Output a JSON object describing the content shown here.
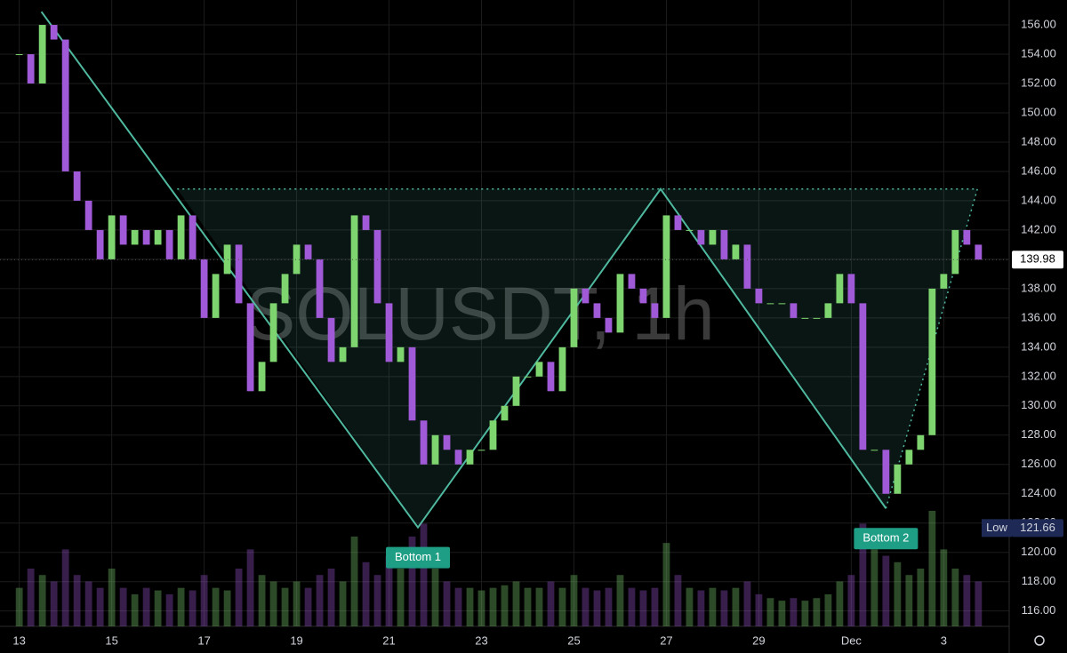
{
  "chart_data": {
    "type": "candlestick",
    "title": "SOLUSDT, 1h",
    "x": [
      0,
      6,
      12,
      18,
      24,
      30,
      36,
      42,
      48,
      54,
      60,
      66,
      72,
      78,
      84,
      90,
      96,
      102,
      108,
      114,
      120,
      126,
      132,
      138,
      144,
      150,
      156,
      162,
      168,
      174,
      180,
      186,
      192,
      198,
      204,
      210,
      216,
      222,
      228,
      234,
      240,
      246,
      252,
      258,
      264,
      270,
      276,
      282,
      288,
      294,
      300,
      306,
      312,
      318,
      324,
      330,
      336,
      342,
      348,
      354,
      360,
      366,
      372,
      378,
      384,
      390,
      396,
      402,
      408,
      414,
      420,
      426,
      432,
      438,
      444,
      450,
      456,
      462,
      468,
      474,
      480,
      486,
      492,
      498
    ],
    "close": [
      154,
      152,
      156,
      155,
      146,
      144,
      142,
      140,
      143,
      141,
      142,
      141,
      142,
      140,
      143,
      140,
      136,
      139,
      141,
      137,
      131,
      133,
      137,
      139,
      141,
      140,
      136,
      133,
      134,
      143,
      142,
      137,
      133,
      134,
      129,
      126,
      128,
      127,
      126,
      127,
      127,
      129,
      130,
      132,
      132,
      133,
      131,
      134,
      138,
      137,
      136,
      135,
      139,
      138,
      137,
      136,
      143,
      142,
      142,
      141,
      142,
      140,
      141,
      138,
      137,
      137,
      137,
      136,
      136,
      136,
      137,
      139,
      137,
      127,
      127,
      124,
      126,
      127,
      128,
      138,
      139,
      142,
      141,
      139.98
    ],
    "volume": [
      30,
      45,
      40,
      35,
      60,
      40,
      35,
      30,
      45,
      30,
      25,
      30,
      28,
      25,
      30,
      28,
      40,
      30,
      28,
      45,
      60,
      40,
      35,
      30,
      35,
      30,
      40,
      45,
      35,
      70,
      50,
      40,
      55,
      45,
      70,
      80,
      45,
      35,
      30,
      30,
      28,
      30,
      32,
      35,
      30,
      30,
      35,
      30,
      40,
      30,
      28,
      30,
      40,
      30,
      28,
      30,
      65,
      40,
      30,
      28,
      30,
      28,
      30,
      35,
      25,
      22,
      20,
      22,
      20,
      22,
      25,
      35,
      40,
      80,
      60,
      55,
      50,
      40,
      45,
      90,
      60,
      45,
      40,
      35
    ],
    "up_color": "#7ed56f",
    "down_color": "#a05ad8",
    "xlim": [
      -10,
      514
    ],
    "ylim": [
      114.95,
      157.7
    ],
    "xticks": [
      {
        "value": 0,
        "label": "13"
      },
      {
        "value": 48,
        "label": "15"
      },
      {
        "value": 96,
        "label": "17"
      },
      {
        "value": 144,
        "label": "19"
      },
      {
        "value": 192,
        "label": "21"
      },
      {
        "value": 240,
        "label": "23"
      },
      {
        "value": 288,
        "label": "25"
      },
      {
        "value": 336,
        "label": "27"
      },
      {
        "value": 384,
        "label": "29"
      },
      {
        "value": 432,
        "label": "Dec"
      },
      {
        "value": 480,
        "label": "3"
      }
    ],
    "yticks": [
      {
        "value": 116,
        "label": "116.00"
      },
      {
        "value": 118,
        "label": "118.00"
      },
      {
        "value": 120,
        "label": "120.00"
      },
      {
        "value": 122,
        "label": "122.00"
      },
      {
        "value": 124,
        "label": "124.00"
      },
      {
        "value": 126,
        "label": "126.00"
      },
      {
        "value": 128,
        "label": "128.00"
      },
      {
        "value": 130,
        "label": "130.00"
      },
      {
        "value": 132,
        "label": "132.00"
      },
      {
        "value": 134,
        "label": "134.00"
      },
      {
        "value": 136,
        "label": "136.00"
      },
      {
        "value": 138,
        "label": "138.00"
      },
      {
        "value": 140,
        "label": "140.00"
      },
      {
        "value": 142,
        "label": "142.00"
      },
      {
        "value": 144,
        "label": "144.00"
      },
      {
        "value": 146,
        "label": "146.00"
      },
      {
        "value": 148,
        "label": "148.00"
      },
      {
        "value": 150,
        "label": "150.00"
      },
      {
        "value": 152,
        "label": "152.00"
      },
      {
        "value": 154,
        "label": "154.00"
      },
      {
        "value": 156,
        "label": "156.00"
      }
    ],
    "grid": true,
    "pattern": {
      "color": "#4fb9a0",
      "x": [
        11.5,
        207,
        333,
        450,
        497.5
      ],
      "y": [
        156.9,
        121.7,
        144.8,
        123,
        144.8
      ],
      "neckline": 144.8,
      "neckline_start": 82
    },
    "annotations": [
      {
        "text": "Bottom 1",
        "x": 207,
        "y": 121.7
      },
      {
        "text": "Bottom 2",
        "x": 450,
        "y": 123
      }
    ],
    "last_price": 139.98,
    "low": {
      "label": "Low",
      "value": 121.66
    }
  }
}
